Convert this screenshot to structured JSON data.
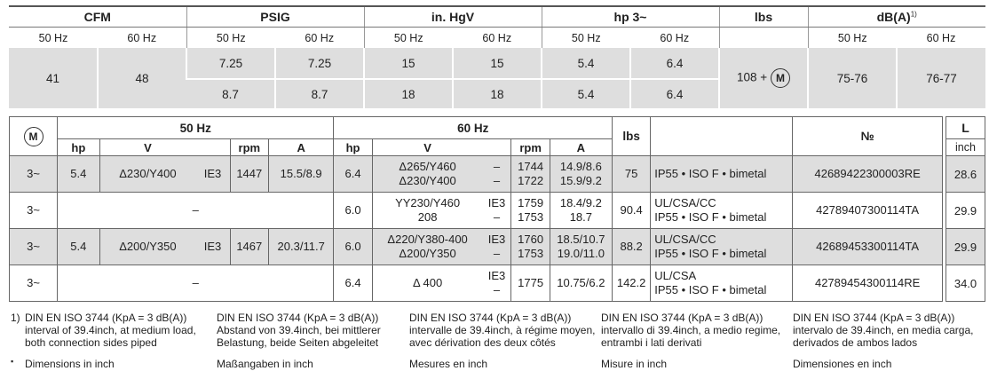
{
  "top": {
    "headers": {
      "cfm": "CFM",
      "psig": "PSIG",
      "hg": "in. HgV",
      "hp": "hp 3~",
      "lbs": "lbs",
      "db": "dB(A)",
      "db_sup": "1)"
    },
    "hz50": "50 Hz",
    "hz60": "60 Hz",
    "cfm_50": "41",
    "cfm_60": "48",
    "psig_r1": [
      "7.25",
      "7.25"
    ],
    "psig_r2": [
      "8.7",
      "8.7"
    ],
    "hg_r1": [
      "15",
      "15"
    ],
    "hg_r2": [
      "18",
      "18"
    ],
    "hp_r1": [
      "5.4",
      "6.4"
    ],
    "hp_r2": [
      "5.4",
      "6.4"
    ],
    "lbs": "108 +",
    "motor": "M",
    "db_50": "75-76",
    "db_60": "76-77"
  },
  "bottom": {
    "motor": "M",
    "hz50": "50 Hz",
    "hz60": "60 Hz",
    "lbs": "lbs",
    "no": "№",
    "cols": {
      "hp": "hp",
      "v": "V",
      "rpm": "rpm",
      "a": "A"
    },
    "rows": [
      {
        "ph": "3~",
        "hp50": "5.4",
        "v50": "Δ230/Y400",
        "ie50": "IE3",
        "rpm50": "1447",
        "a50": "15.5/8.9",
        "hp60": "6.4",
        "v60a": "Δ265/Y460",
        "v60b": "Δ230/Y400",
        "ie60a": "–",
        "ie60b": "–",
        "rpm60a": "1744",
        "rpm60b": "1722",
        "a60a": "14.9/8.6",
        "a60b": "15.9/9.2",
        "lbs": "75",
        "spec1": "IP55 • ISO F • bimetal",
        "spec2": "",
        "no": "42689422300003RE",
        "l": "28.6"
      },
      {
        "ph": "3~",
        "dash50": "–",
        "hp60": "6.0",
        "v60a": "YY230/Y460",
        "v60b": "208",
        "ie60a": "IE3",
        "ie60b": "–",
        "rpm60a": "1759",
        "rpm60b": "1753",
        "a60a": "18.4/9.2",
        "a60b": "18.7",
        "lbs": "90.4",
        "spec1": "UL/CSA/CC",
        "spec2": "IP55 • ISO F • bimetal",
        "no": "42789407300114TA",
        "l": "29.9"
      },
      {
        "ph": "3~",
        "hp50": "5.4",
        "v50": "Δ200/Y350",
        "ie50": "IE3",
        "rpm50": "1467",
        "a50": "20.3/11.7",
        "hp60": "6.0",
        "v60a": "Δ220/Y380-400",
        "v60b": "Δ200/Y350",
        "ie60a": "IE3",
        "ie60b": "–",
        "rpm60a": "1760",
        "rpm60b": "1753",
        "a60a": "18.5/10.7",
        "a60b": "19.0/11.0",
        "lbs": "88.2",
        "spec1": "UL/CSA/CC",
        "spec2": "IP55 • ISO F • bimetal",
        "no": "42689453300114TA",
        "l": "29.9"
      },
      {
        "ph": "3~",
        "dash50": "–",
        "hp60": "6.4",
        "v60a": "Δ 400",
        "v60b": "",
        "ie60a": "IE3",
        "ie60b": "–",
        "rpm60a": "1775",
        "rpm60b": "",
        "a60a": "10.75/6.2",
        "a60b": "",
        "lbs": "142.2",
        "spec1": "UL/CSA",
        "spec2": "IP55 • ISO F • bimetal",
        "no": "42789454300114RE",
        "l": "34.0"
      }
    ]
  },
  "lcol": {
    "head": "L",
    "unit": "inch"
  },
  "footnotes": {
    "marker": "1)",
    "bullet": "▪",
    "cols": [
      {
        "l1": "DIN EN ISO 3744 (KpA = 3 dB(A))",
        "l2": "interval of 39.4inch, at medium load,",
        "l3": "both connection sides piped",
        "dim": "Dimensions in inch"
      },
      {
        "l1": "DIN EN ISO 3744 (KpA = 3 dB(A))",
        "l2": "Abstand von 39.4inch, bei mittlerer",
        "l3": "Belastung, beide Seiten abgeleitet",
        "dim": "Maßangaben in inch"
      },
      {
        "l1": "DIN EN ISO 3744 (KpA = 3 dB(A))",
        "l2": "intervalle de 39.4inch, à régime moyen,",
        "l3": "avec dérivation des deux côtés",
        "dim": "Mesures en inch"
      },
      {
        "l1": "DIN EN ISO 3744 (KpA = 3 dB(A))",
        "l2": "intervallo di 39.4inch, a medio regime,",
        "l3": "entrambi i lati derivati",
        "dim": "Misure in inch"
      },
      {
        "l1": "DIN EN ISO 3744 (KpA = 3 dB(A))",
        "l2": "intervalo de 39.4inch, en media carga,",
        "l3": "derivados de ambos lados",
        "dim": "Dimensiones en inch"
      }
    ]
  }
}
